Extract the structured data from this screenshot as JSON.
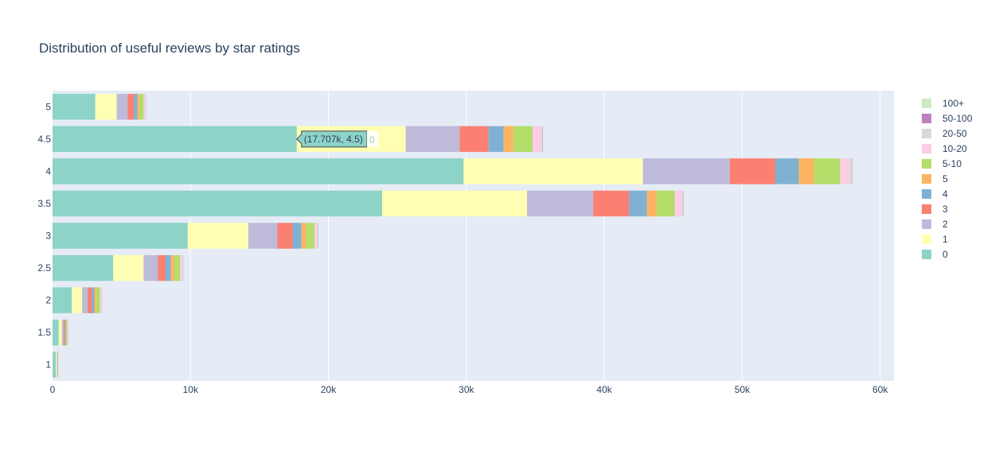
{
  "chart_data": {
    "type": "bar",
    "orientation": "horizontal",
    "barmode": "stack",
    "title": "Distribution of useful reviews by star ratings",
    "xlabel": "",
    "ylabel": "",
    "categories": [
      "1",
      "1.5",
      "2",
      "2.5",
      "3",
      "3.5",
      "4",
      "4.5",
      "5"
    ],
    "xlim": [
      0,
      61000
    ],
    "x_ticks": [
      0,
      10000,
      20000,
      30000,
      40000,
      50000,
      60000
    ],
    "x_tick_labels": [
      "0",
      "10k",
      "20k",
      "30k",
      "40k",
      "50k",
      "60k"
    ],
    "grid": true,
    "legend_position": "right",
    "series": [
      {
        "name": "0",
        "color": "#8dd3c7",
        "values": [
          250,
          450,
          1400,
          4400,
          9800,
          23900,
          29800,
          17707,
          3100
        ]
      },
      {
        "name": "1",
        "color": "#ffffb3",
        "values": [
          70,
          230,
          750,
          2200,
          4400,
          10500,
          13000,
          7900,
          1550
        ]
      },
      {
        "name": "2",
        "color": "#bebada",
        "values": [
          30,
          130,
          400,
          1050,
          2100,
          4800,
          6300,
          3900,
          800
        ]
      },
      {
        "name": "3",
        "color": "#fb8072",
        "values": [
          20,
          80,
          300,
          550,
          1100,
          2600,
          3300,
          2100,
          450
        ]
      },
      {
        "name": "4",
        "color": "#80b1d3",
        "values": [
          10,
          60,
          180,
          380,
          650,
          1300,
          1700,
          1100,
          250
        ]
      },
      {
        "name": "5",
        "color": "#fdb462",
        "values": [
          8,
          40,
          130,
          250,
          350,
          700,
          1100,
          700,
          150
        ]
      },
      {
        "name": "5-10",
        "color": "#b3de69",
        "values": [
          20,
          90,
          280,
          420,
          600,
          1300,
          1900,
          1400,
          300
        ]
      },
      {
        "name": "10-20",
        "color": "#fccde5",
        "values": [
          10,
          40,
          100,
          150,
          200,
          500,
          700,
          600,
          120
        ]
      },
      {
        "name": "20-50",
        "color": "#d9d9d9",
        "values": [
          5,
          20,
          40,
          60,
          60,
          120,
          150,
          120,
          30
        ]
      },
      {
        "name": "50-100",
        "color": "#bc80bd",
        "values": [
          2,
          5,
          10,
          15,
          15,
          25,
          30,
          25,
          10
        ]
      },
      {
        "name": "100+",
        "color": "#ccebc5",
        "values": [
          2,
          3,
          5,
          8,
          8,
          12,
          15,
          12,
          5
        ]
      }
    ],
    "legend_order": [
      "100+",
      "50-100",
      "20-50",
      "10-20",
      "5-10",
      "5",
      "4",
      "3",
      "2",
      "1",
      "0"
    ],
    "hover": {
      "category": "4.5",
      "series": "0",
      "label": "(17.707k, 4.5)",
      "trail": "0"
    }
  },
  "colors": {
    "plot_bg": "#e5ecf6",
    "grid": "#ffffff",
    "text": "#2a3f5f"
  }
}
